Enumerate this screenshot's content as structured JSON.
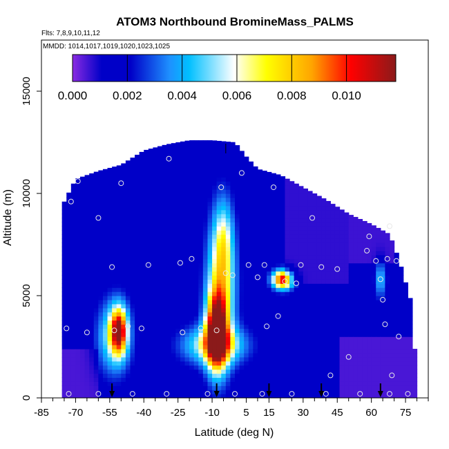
{
  "chart_data": {
    "type": "heatmap",
    "title": "ATOM3 Northbound BromineMass_PALMS",
    "subtitle_flights": "Flts: 7,8,9,10,11,12",
    "subtitle_dates": "MMDD: 1014,1017,1019,1020,1023,1025",
    "xlabel": "Latitude (deg N)",
    "ylabel": "Altitude (m)",
    "xlim": [
      -85,
      85
    ],
    "ylim": [
      0,
      17500
    ],
    "x_ticks": [
      -85,
      -70,
      -55,
      -40,
      -25,
      -10,
      5,
      15,
      30,
      45,
      60,
      75
    ],
    "x_tick_labels": [
      "-85",
      "-70",
      "-55",
      "-40",
      "-25",
      "-10",
      "5",
      "15",
      "30",
      "45",
      "60",
      "75"
    ],
    "y_ticks": [
      0,
      5000,
      10000,
      15000
    ],
    "y_tick_labels": [
      "0",
      "5000",
      "10000",
      "15000"
    ],
    "colorbar": {
      "min": 0,
      "max": 0.0118,
      "ticks": [
        0.0,
        0.002,
        0.004,
        0.006,
        0.008,
        0.01
      ],
      "tick_labels": [
        "0.000",
        "0.002",
        "0.004",
        "0.006",
        "0.008",
        "0.010"
      ],
      "colors": [
        "#8a2be2",
        "#0000c8",
        "#1e90ff",
        "#00bfff",
        "#ffffff",
        "#ffff00",
        "#ffa500",
        "#ff0000",
        "#8b1a1a"
      ]
    },
    "profile_arrows_latitude": [
      -54,
      -8,
      15,
      38,
      64
    ],
    "sample_points": [
      [
        -74,
        3400
      ],
      [
        -72,
        9600
      ],
      [
        -69,
        10600
      ],
      [
        -65,
        3200
      ],
      [
        -60,
        8800
      ],
      [
        -54,
        6400
      ],
      [
        -53,
        3300
      ],
      [
        -50,
        10500
      ],
      [
        -47,
        3500
      ],
      [
        -41,
        3400
      ],
      [
        -38,
        6500
      ],
      [
        -29,
        11700
      ],
      [
        -24,
        6600
      ],
      [
        -23,
        3200
      ],
      [
        -19,
        6800
      ],
      [
        -15,
        3400
      ],
      [
        -8,
        3300
      ],
      [
        -6,
        10300
      ],
      [
        -4,
        6100
      ],
      [
        -1,
        6000
      ],
      [
        3,
        11000
      ],
      [
        6,
        6500
      ],
      [
        10,
        5900
      ],
      [
        13,
        6500
      ],
      [
        14,
        3500
      ],
      [
        17,
        10300
      ],
      [
        19,
        4000
      ],
      [
        22,
        5700
      ],
      [
        27,
        5600
      ],
      [
        29,
        6500
      ],
      [
        34,
        8800
      ],
      [
        38,
        6400
      ],
      [
        42,
        1100
      ],
      [
        45,
        6300
      ],
      [
        50,
        2000
      ],
      [
        58,
        7200
      ],
      [
        59,
        7900
      ],
      [
        62,
        6700
      ],
      [
        64,
        5800
      ],
      [
        65,
        4800
      ],
      [
        66,
        3600
      ],
      [
        67,
        6800
      ],
      [
        68,
        8400
      ],
      [
        69,
        1100
      ],
      [
        71,
        6700
      ],
      [
        72,
        3000
      ],
      [
        -73,
        200
      ],
      [
        -60,
        200
      ],
      [
        -45,
        200
      ],
      [
        -30,
        200
      ],
      [
        -12,
        200
      ],
      [
        0,
        200
      ],
      [
        12,
        200
      ],
      [
        25,
        200
      ],
      [
        40,
        200
      ],
      [
        55,
        200
      ],
      [
        68,
        200
      ],
      [
        76,
        200
      ]
    ]
  }
}
